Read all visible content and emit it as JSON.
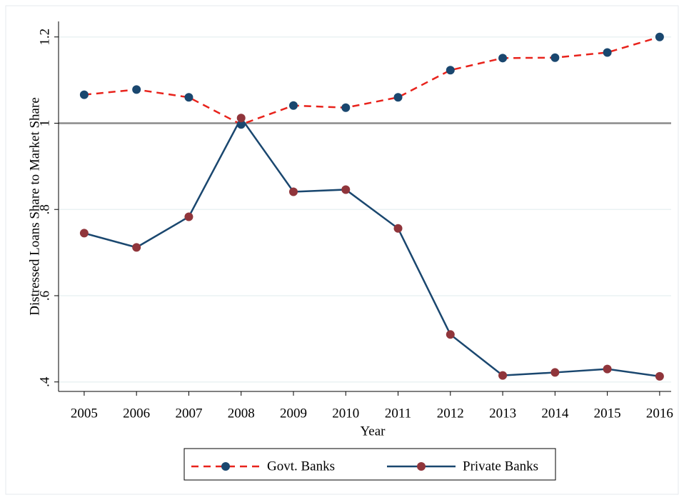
{
  "chart_data": {
    "type": "line",
    "x_label": "Year",
    "y_label": "Distressed Loans Share to Market Share",
    "x": [
      2005,
      2006,
      2007,
      2008,
      2009,
      2010,
      2011,
      2012,
      2013,
      2014,
      2015,
      2016
    ],
    "series": [
      {
        "name": "Govt. Banks",
        "color": "#e8231c",
        "marker_color": "#1a476f",
        "dash": true,
        "values": [
          1.066,
          1.078,
          1.06,
          0.997,
          1.041,
          1.036,
          1.06,
          1.123,
          1.151,
          1.152,
          1.164,
          1.2
        ]
      },
      {
        "name": "Private Banks",
        "color": "#1a476f",
        "marker_color": "#90353b",
        "dash": false,
        "values": [
          0.745,
          0.712,
          0.783,
          1.012,
          0.841,
          0.846,
          0.756,
          0.51,
          0.415,
          0.422,
          0.43,
          0.413
        ]
      }
    ],
    "xlim": [
      2004.51,
      2016.22
    ],
    "xticks": [
      2005,
      2006,
      2007,
      2008,
      2009,
      2010,
      2011,
      2012,
      2013,
      2014,
      2015,
      2016
    ],
    "ylim": [
      0.378,
      1.236
    ],
    "yticks": [
      {
        "value": 0.4,
        "label": ".4"
      },
      {
        "value": 0.6,
        "label": ".6"
      },
      {
        "value": 0.8,
        "label": ".8"
      },
      1,
      1.2
    ],
    "reference_line": 1,
    "grid": true,
    "legend_position": "bottom"
  }
}
